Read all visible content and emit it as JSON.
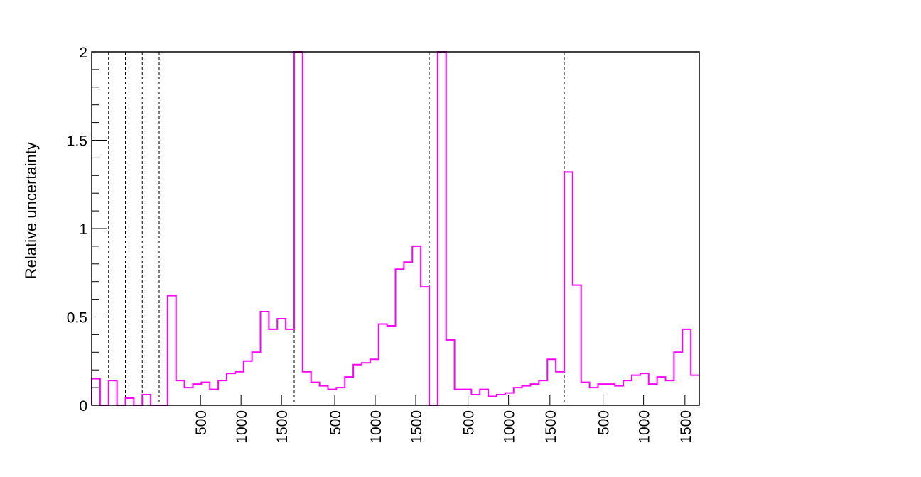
{
  "chart_data": {
    "type": "line",
    "title": "",
    "xlabel": "",
    "ylabel": "Relative uncertainty",
    "ylim": [
      0,
      2
    ],
    "y_ticks": [
      "0",
      "0.5",
      "1",
      "1.5",
      "2"
    ],
    "x_tick_labels": [
      "500",
      "1000",
      "1500",
      "500",
      "1000",
      "1500",
      "500",
      "1000",
      "1500",
      "500",
      "1000",
      "1500"
    ],
    "x_ticks": [
      {
        "label": "500",
        "bin": 12.9
      },
      {
        "label": "1000",
        "bin": 17.7
      },
      {
        "label": "1500",
        "bin": 22.5
      },
      {
        "label": "500",
        "bin": 28.8
      },
      {
        "label": "1000",
        "bin": 33.6
      },
      {
        "label": "1500",
        "bin": 38.4
      },
      {
        "label": "500",
        "bin": 44.6
      },
      {
        "label": "1000",
        "bin": 49.4
      },
      {
        "label": "1500",
        "bin": 54.3
      },
      {
        "label": "500",
        "bin": 60.6
      },
      {
        "label": "1000",
        "bin": 65.4
      },
      {
        "label": "1500",
        "bin": 70.3
      }
    ],
    "x_bins": 72,
    "dashed_separators_at_bin": [
      2,
      4,
      6,
      8,
      24,
      40,
      56
    ],
    "series": [
      {
        "color": "#ff00ff",
        "values": [
          0.15,
          0,
          0.14,
          0,
          0.04,
          0,
          0.06,
          0,
          0,
          0.62,
          0.14,
          0.1,
          0.12,
          0.13,
          0.09,
          0.14,
          0.18,
          0.19,
          0.25,
          0.3,
          0.53,
          0.43,
          0.49,
          0.43,
          2.0,
          0.19,
          0.13,
          0.11,
          0.09,
          0.1,
          0.16,
          0.23,
          0.24,
          0.26,
          0.46,
          0.45,
          0.77,
          0.81,
          0.9,
          0.67,
          0,
          2.0,
          0.37,
          0.09,
          0.09,
          0.06,
          0.09,
          0.05,
          0.06,
          0.07,
          0.1,
          0.11,
          0.12,
          0.14,
          0.26,
          0.19,
          1.32,
          0.68,
          0.13,
          0.1,
          0.12,
          0.12,
          0.11,
          0.14,
          0.17,
          0.18,
          0.12,
          0.16,
          0.14,
          0.3,
          0.43,
          0.17
        ]
      }
    ]
  }
}
